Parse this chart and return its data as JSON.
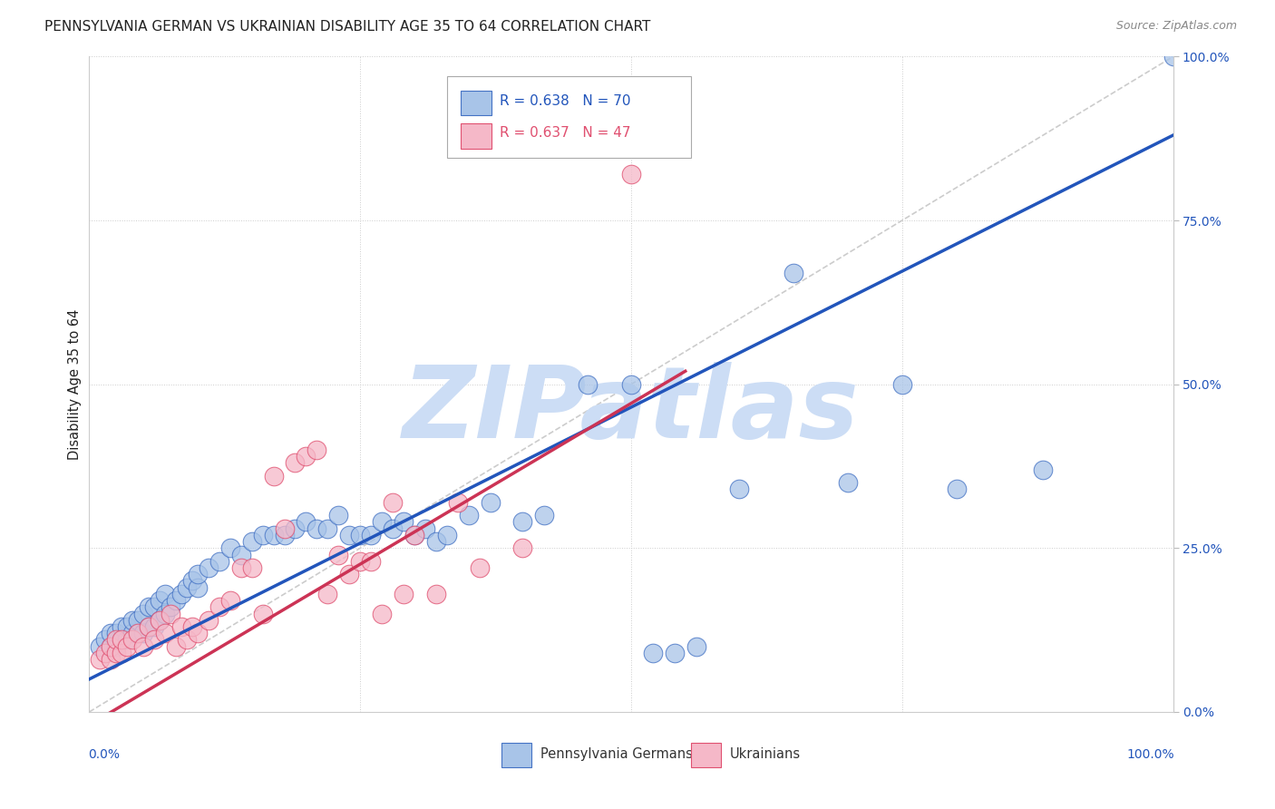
{
  "title": "PENNSYLVANIA GERMAN VS UKRAINIAN DISABILITY AGE 35 TO 64 CORRELATION CHART",
  "source": "Source: ZipAtlas.com",
  "ylabel": "Disability Age 35 to 64",
  "legend_blue_r": "R = 0.638",
  "legend_blue_n": "N = 70",
  "legend_pink_r": "R = 0.637",
  "legend_pink_n": "N = 47",
  "legend_blue_label": "Pennsylvania Germans",
  "legend_pink_label": "Ukrainians",
  "blue_fill": "#a8c4e8",
  "pink_fill": "#f5b8c8",
  "blue_edge": "#4472c4",
  "pink_edge": "#e05070",
  "blue_line_color": "#2255bb",
  "pink_line_color": "#cc3355",
  "diagonal_color": "#cccccc",
  "watermark_color": "#ccddf5",
  "blue_scatter_x": [
    0.01,
    0.015,
    0.02,
    0.02,
    0.025,
    0.025,
    0.03,
    0.03,
    0.035,
    0.035,
    0.04,
    0.04,
    0.045,
    0.045,
    0.05,
    0.05,
    0.055,
    0.055,
    0.06,
    0.06,
    0.065,
    0.065,
    0.07,
    0.07,
    0.075,
    0.08,
    0.085,
    0.09,
    0.095,
    0.1,
    0.1,
    0.11,
    0.12,
    0.13,
    0.14,
    0.15,
    0.16,
    0.17,
    0.18,
    0.19,
    0.2,
    0.21,
    0.22,
    0.23,
    0.24,
    0.25,
    0.26,
    0.27,
    0.28,
    0.29,
    0.3,
    0.31,
    0.32,
    0.33,
    0.35,
    0.37,
    0.4,
    0.42,
    0.46,
    0.5,
    0.52,
    0.54,
    0.56,
    0.6,
    0.65,
    0.7,
    0.75,
    0.8,
    0.88,
    1.0
  ],
  "blue_scatter_y": [
    0.1,
    0.11,
    0.1,
    0.12,
    0.1,
    0.12,
    0.11,
    0.13,
    0.11,
    0.13,
    0.12,
    0.14,
    0.12,
    0.14,
    0.12,
    0.15,
    0.13,
    0.16,
    0.13,
    0.16,
    0.14,
    0.17,
    0.15,
    0.18,
    0.16,
    0.17,
    0.18,
    0.19,
    0.2,
    0.19,
    0.21,
    0.22,
    0.23,
    0.25,
    0.24,
    0.26,
    0.27,
    0.27,
    0.27,
    0.28,
    0.29,
    0.28,
    0.28,
    0.3,
    0.27,
    0.27,
    0.27,
    0.29,
    0.28,
    0.29,
    0.27,
    0.28,
    0.26,
    0.27,
    0.3,
    0.32,
    0.29,
    0.3,
    0.5,
    0.5,
    0.09,
    0.09,
    0.1,
    0.34,
    0.67,
    0.35,
    0.5,
    0.34,
    0.37,
    1.0
  ],
  "pink_scatter_x": [
    0.01,
    0.015,
    0.02,
    0.02,
    0.025,
    0.025,
    0.03,
    0.03,
    0.035,
    0.04,
    0.045,
    0.05,
    0.055,
    0.06,
    0.065,
    0.07,
    0.075,
    0.08,
    0.085,
    0.09,
    0.095,
    0.1,
    0.11,
    0.12,
    0.13,
    0.14,
    0.15,
    0.16,
    0.17,
    0.18,
    0.19,
    0.2,
    0.21,
    0.22,
    0.23,
    0.24,
    0.25,
    0.26,
    0.27,
    0.28,
    0.29,
    0.3,
    0.32,
    0.34,
    0.36,
    0.4,
    0.5
  ],
  "pink_scatter_y": [
    0.08,
    0.09,
    0.08,
    0.1,
    0.09,
    0.11,
    0.09,
    0.11,
    0.1,
    0.11,
    0.12,
    0.1,
    0.13,
    0.11,
    0.14,
    0.12,
    0.15,
    0.1,
    0.13,
    0.11,
    0.13,
    0.12,
    0.14,
    0.16,
    0.17,
    0.22,
    0.22,
    0.15,
    0.36,
    0.28,
    0.38,
    0.39,
    0.4,
    0.18,
    0.24,
    0.21,
    0.23,
    0.23,
    0.15,
    0.32,
    0.18,
    0.27,
    0.18,
    0.32,
    0.22,
    0.25,
    0.82
  ],
  "blue_line": {
    "x0": 0.0,
    "y0": 0.05,
    "x1": 1.0,
    "y1": 0.88
  },
  "pink_line": {
    "x0": 0.0,
    "y0": -0.02,
    "x1": 0.55,
    "y1": 0.52
  },
  "diagonal_line": {
    "x0": 0.0,
    "y0": 0.0,
    "x1": 1.0,
    "y1": 1.0
  },
  "xlim": [
    0.0,
    1.0
  ],
  "ylim": [
    0.0,
    1.0
  ],
  "grid_ticks": [
    0.25,
    0.5,
    0.75,
    1.0
  ]
}
